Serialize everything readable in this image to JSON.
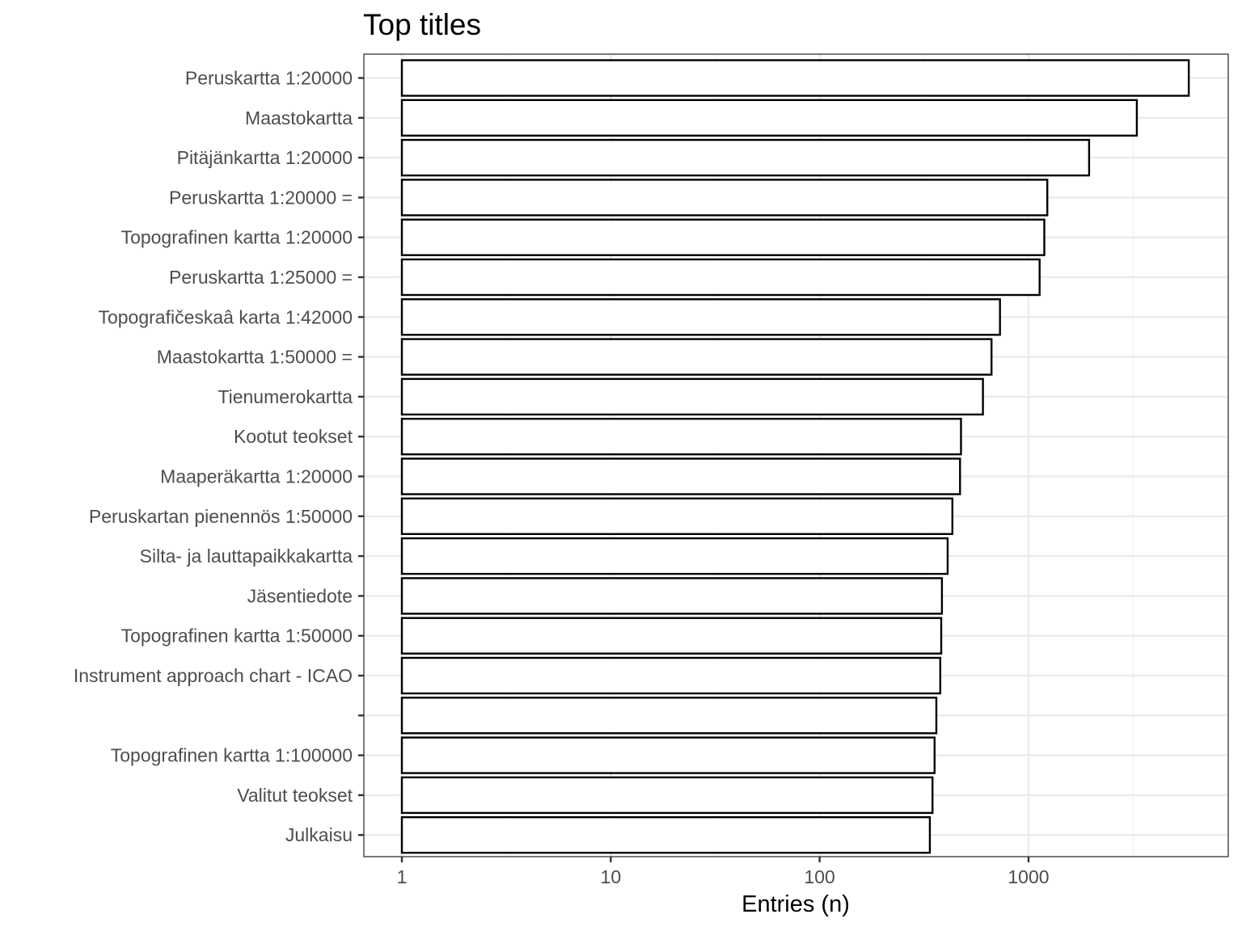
{
  "chart_data": {
    "type": "bar",
    "orientation": "horizontal",
    "title": "Top titles",
    "xlabel": "Entries (n)",
    "ylabel": "",
    "x_scale": "log10",
    "xlim": [
      1,
      8000
    ],
    "x_ticks": [
      1,
      10,
      100,
      1000
    ],
    "x_tick_labels": [
      "1",
      "10",
      "100",
      "1000"
    ],
    "grid": true,
    "legend": "none",
    "bar_fill": "#ffffff",
    "bar_outline": "#000000",
    "categories": [
      "Peruskartta 1:20000",
      "Maastokartta",
      "Pitäjänkartta 1:20000",
      "Peruskartta 1:20000 =",
      "Topografinen kartta 1:20000",
      "Peruskartta 1:25000 =",
      "Topografičeskaâ karta 1:42000",
      "Maastokartta 1:50000 =",
      "Tienumerokartta",
      "Kootut teokset",
      "Maaperäkartta 1:20000",
      "Peruskartan pienennös 1:50000",
      "Silta- ja lauttapaikkakartta",
      "Jäsentiedote",
      "Topografinen kartta 1:50000",
      "Instrument approach chart - ICAO",
      "",
      "Topografinen kartta 1:100000",
      "Valitut teokset",
      "Julkaisu"
    ],
    "values": [
      5850,
      3300,
      1950,
      1230,
      1190,
      1130,
      730,
      665,
      605,
      475,
      470,
      432,
      410,
      385,
      382,
      378,
      362,
      355,
      347,
      337
    ]
  }
}
